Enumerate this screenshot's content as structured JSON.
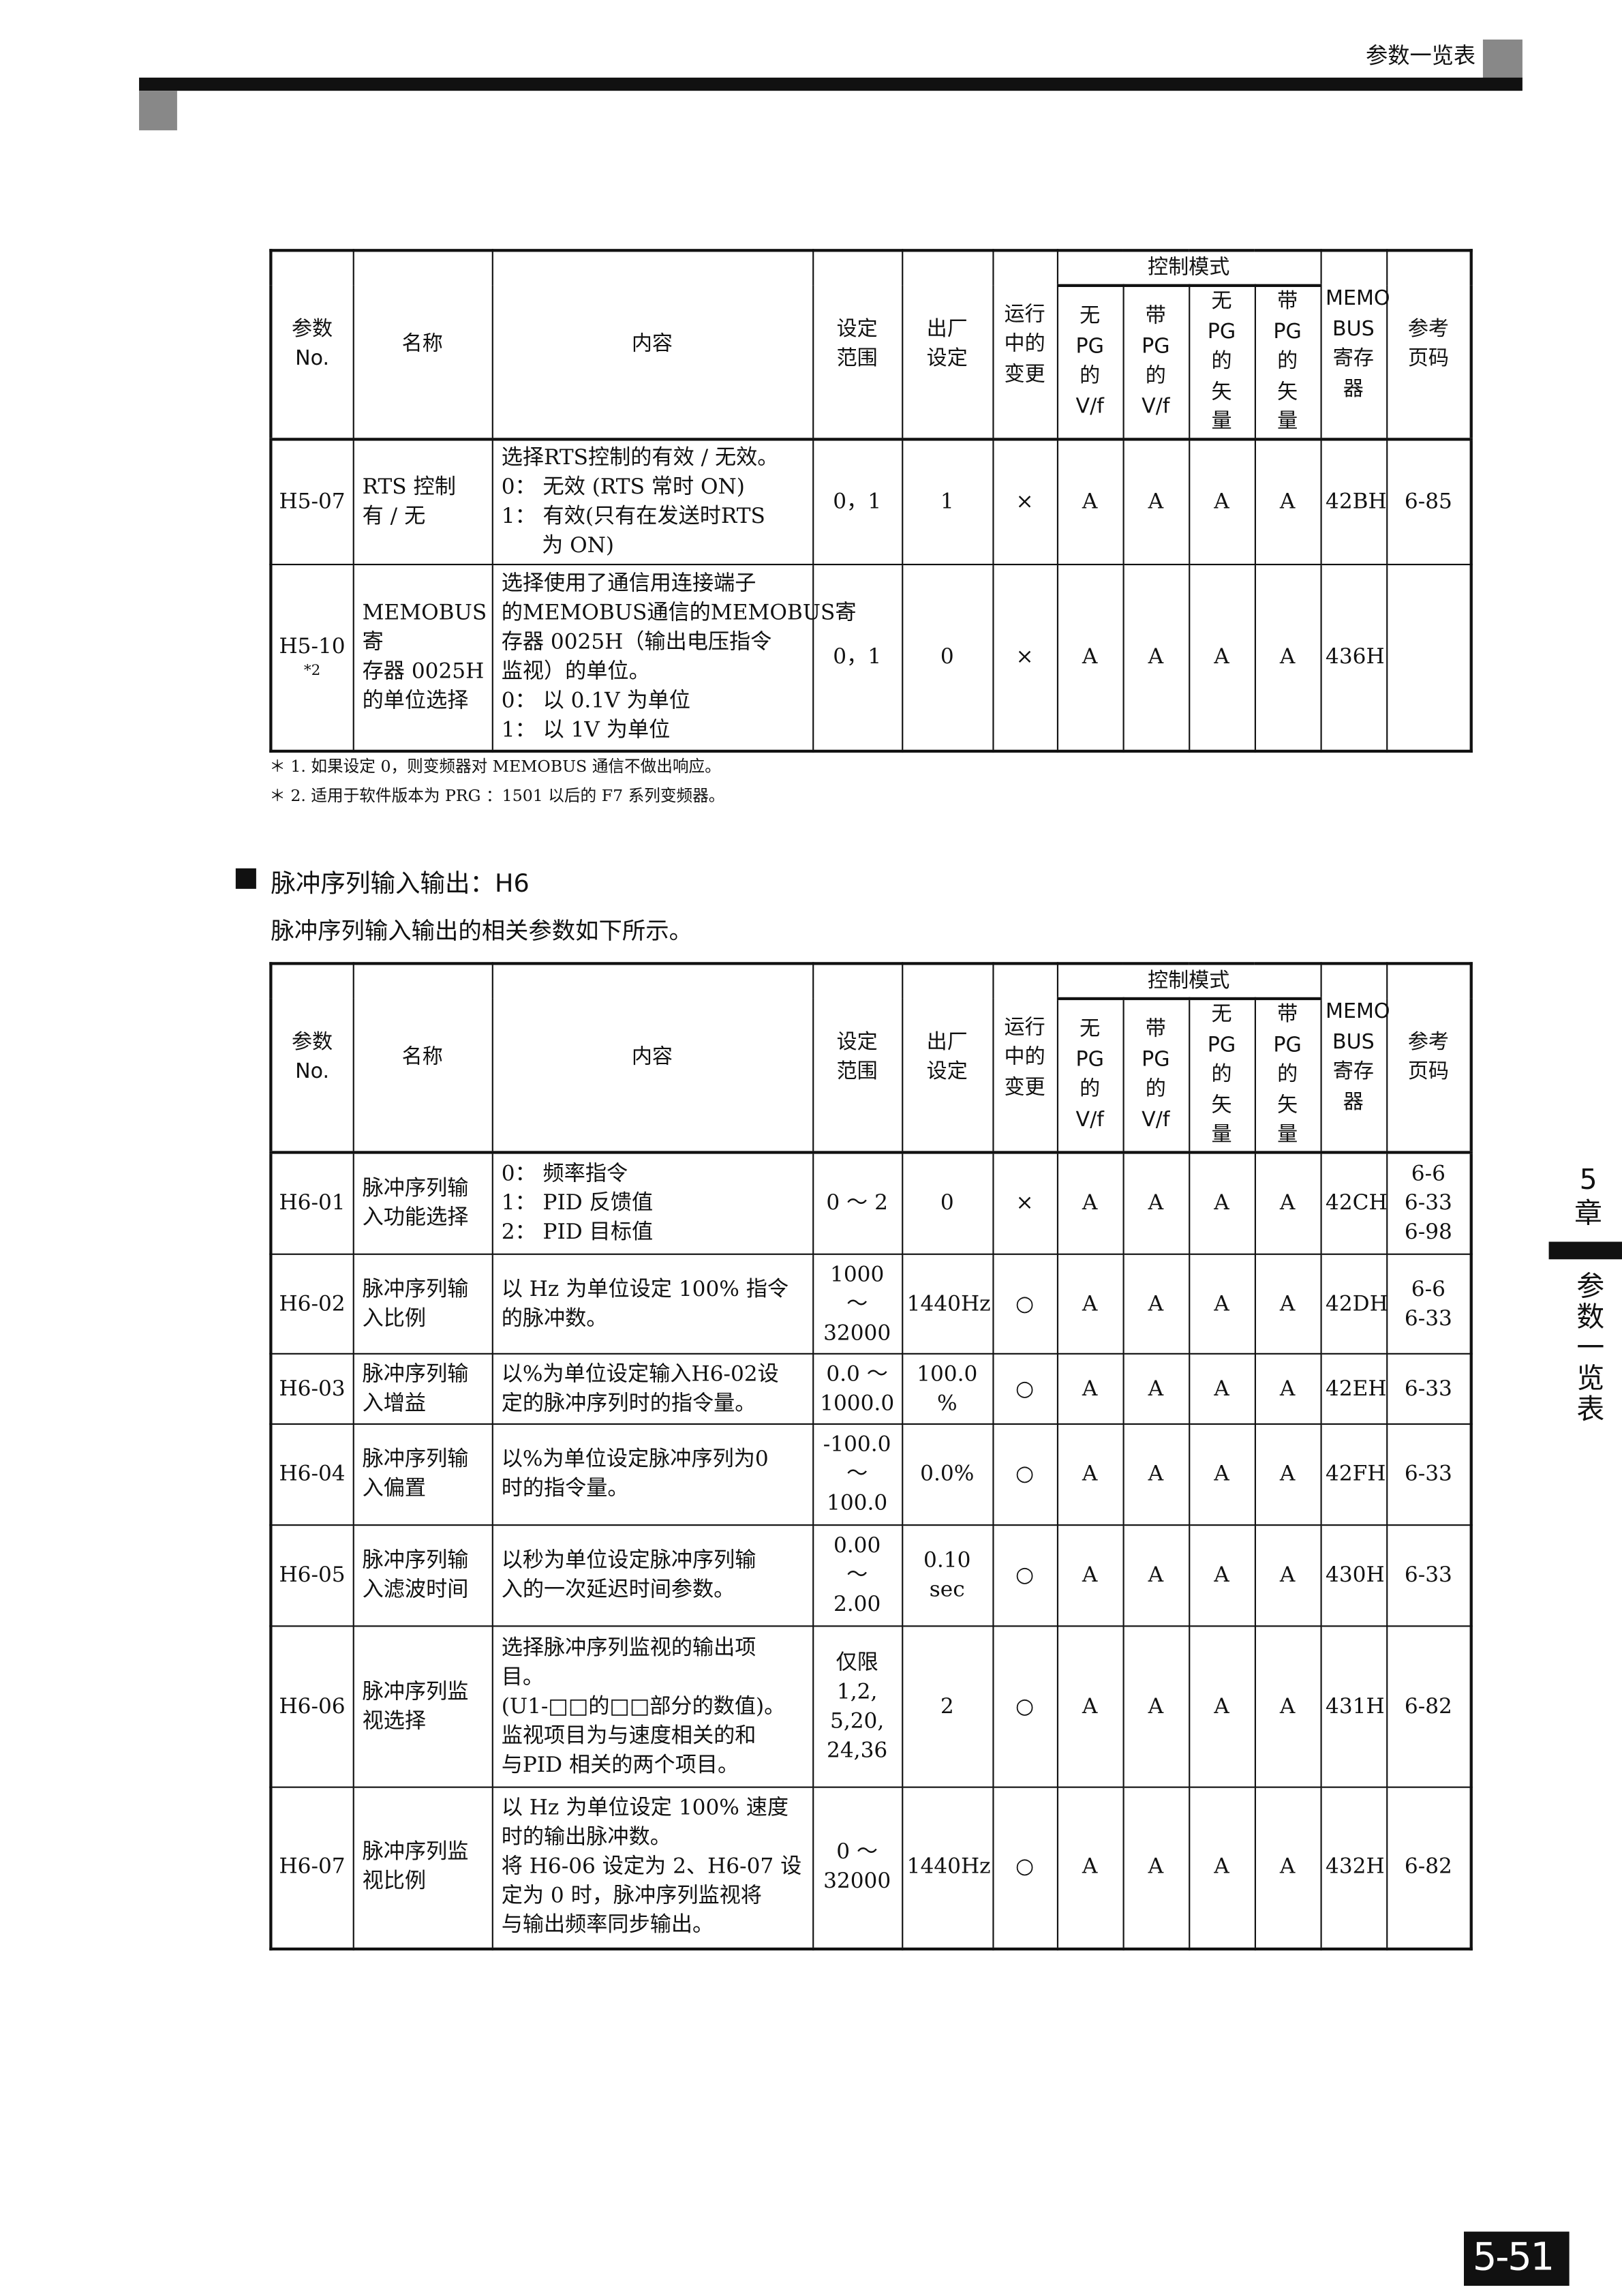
{
  "header": {
    "title": "参数一览表"
  },
  "side_tab": {
    "chapter_number": "5",
    "chapter_label": "章",
    "section": "参数一览表"
  },
  "page_number": "5-51",
  "tables": [
    {
      "head": {
        "param": [
          "参数",
          "No."
        ],
        "name": [
          "名称"
        ],
        "content": [
          "内容"
        ],
        "range": [
          "设定",
          "范围"
        ],
        "default": [
          "出厂",
          "设定"
        ],
        "change": [
          "运行",
          "中的",
          "变更"
        ],
        "mode_group": "控制模式",
        "modes": [
          [
            "无",
            "PG",
            "的",
            "V/f"
          ],
          [
            "带",
            "PG",
            "的",
            "V/f"
          ],
          [
            "无",
            "PG",
            "的",
            "矢",
            "量"
          ],
          [
            "带",
            "PG",
            "的",
            "矢",
            "量"
          ]
        ],
        "register": [
          "MEMO",
          "BUS",
          "寄存",
          "器"
        ],
        "page": [
          "参考",
          "页码"
        ]
      },
      "rows": [
        {
          "no": [
            "H5-07"
          ],
          "name": [
            "RTS 控制",
            "有 / 无"
          ],
          "content": [
            "选择RTS控制的有效 / 无效。",
            "0： 无效 (RTS 常时 ON)",
            "1： 有效(只有在发送时RTS",
            "      为 ON)"
          ],
          "range": [
            "0，1"
          ],
          "default": [
            "1"
          ],
          "change": [
            "×"
          ],
          "modes": [
            "A",
            "A",
            "A",
            "A"
          ],
          "register": [
            "42BH"
          ],
          "page": [
            "6-85"
          ]
        },
        {
          "no": [
            "H5-10"
          ],
          "note": "*2",
          "name": [
            "MEMOBUS 寄",
            "存器 0025H",
            "的单位选择"
          ],
          "content": [
            "选择使用了通信用连接端子",
            "的MEMOBUS通信的MEMOBUS寄",
            "存器 0025H（输出电压指令",
            "监视）的单位。",
            "0： 以 0.1V 为单位",
            "1： 以 1V 为单位"
          ],
          "range": [
            "0，1"
          ],
          "default": [
            "0"
          ],
          "change": [
            "×"
          ],
          "modes": [
            "A",
            "A",
            "A",
            "A"
          ],
          "register": [
            "436H"
          ],
          "page": null
        }
      ]
    },
    {
      "head": {
        "param": [
          "参数",
          "No."
        ],
        "name": [
          "名称"
        ],
        "content": [
          "内容"
        ],
        "range": [
          "设定",
          "范围"
        ],
        "default": [
          "出厂",
          "设定"
        ],
        "change": [
          "运行",
          "中的",
          "变更"
        ],
        "mode_group": "控制模式",
        "modes": [
          [
            "无",
            "PG",
            "的",
            "V/f"
          ],
          [
            "带",
            "PG",
            "的",
            "V/f"
          ],
          [
            "无",
            "PG",
            "的",
            "矢",
            "量"
          ],
          [
            "带",
            "PG",
            "的",
            "矢",
            "量"
          ]
        ],
        "register": [
          "MEMO",
          "BUS",
          "寄存",
          "器"
        ],
        "page": [
          "参考",
          "页码"
        ]
      },
      "rows": [
        {
          "no": [
            "H6-01"
          ],
          "name": [
            "脉冲序列输",
            "入功能选择"
          ],
          "content": [
            "0： 频率指令",
            "1： PID 反馈值",
            "2： PID 目标值"
          ],
          "range": [
            "0 ～ 2"
          ],
          "default": [
            "0"
          ],
          "change": [
            "×"
          ],
          "modes": [
            "A",
            "A",
            "A",
            "A"
          ],
          "register": [
            "42CH"
          ],
          "page": [
            "6-6",
            "6-33",
            "6-98"
          ]
        },
        {
          "no": [
            "H6-02"
          ],
          "name": [
            "脉冲序列输",
            "入比例"
          ],
          "content": [
            "以 Hz 为单位设定 100% 指令",
            "的脉冲数。"
          ],
          "range": [
            "1000",
            "～",
            "32000"
          ],
          "default": [
            "1440Hz"
          ],
          "change": [
            "○"
          ],
          "modes": [
            "A",
            "A",
            "A",
            "A"
          ],
          "register": [
            "42DH"
          ],
          "page": [
            "6-6",
            "6-33"
          ]
        },
        {
          "no": [
            "H6-03"
          ],
          "name": [
            "脉冲序列输",
            "入增益"
          ],
          "content": [
            "以%为单位设定输入H6-02设",
            "定的脉冲序列时的指令量。"
          ],
          "range": [
            "0.0 ～",
            "1000.0"
          ],
          "default": [
            "100.0",
            "%"
          ],
          "change": [
            "○"
          ],
          "modes": [
            "A",
            "A",
            "A",
            "A"
          ],
          "register": [
            "42EH"
          ],
          "page": [
            "6-33"
          ]
        },
        {
          "no": [
            "H6-04"
          ],
          "name": [
            "脉冲序列输",
            "入偏置"
          ],
          "content": [
            "以%为单位设定脉冲序列为0",
            "时的指令量。"
          ],
          "range": [
            "-100.0",
            "～",
            "100.0"
          ],
          "default": [
            "0.0%"
          ],
          "change": [
            "○"
          ],
          "modes": [
            "A",
            "A",
            "A",
            "A"
          ],
          "register": [
            "42FH"
          ],
          "page": [
            "6-33"
          ]
        },
        {
          "no": [
            "H6-05"
          ],
          "name": [
            "脉冲序列输",
            "入滤波时间"
          ],
          "content": [
            "以秒为单位设定脉冲序列输",
            "入的一次延迟时间参数。"
          ],
          "range": [
            "0.00",
            "～",
            "2.00"
          ],
          "default": [
            "0.10",
            "sec"
          ],
          "change": [
            "○"
          ],
          "modes": [
            "A",
            "A",
            "A",
            "A"
          ],
          "register": [
            "430H"
          ],
          "page": [
            "6-33"
          ]
        },
        {
          "no": [
            "H6-06"
          ],
          "name": [
            "脉冲序列监",
            "视选择"
          ],
          "content": [
            "选择脉冲序列监视的输出项",
            "目。",
            "(U1-□□的□□部分的数值)。",
            "监视项目为与速度相关的和",
            "与PID 相关的两个项目。"
          ],
          "range": [
            "仅限",
            "1,2,",
            "5,20,",
            "24,36"
          ],
          "default": [
            "2"
          ],
          "change": [
            "○"
          ],
          "modes": [
            "A",
            "A",
            "A",
            "A"
          ],
          "register": [
            "431H"
          ],
          "page": [
            "6-82"
          ]
        },
        {
          "no": [
            "H6-07"
          ],
          "name": [
            "脉冲序列监",
            "视比例"
          ],
          "content": [
            "以 Hz 为单位设定 100% 速度",
            "时的输出脉冲数。",
            "将 H6-06 设定为 2、H6-07 设",
            "定为 0 时，脉冲序列监视将",
            "与输出频率同步输出。"
          ],
          "range": [
            "0 ～",
            "32000"
          ],
          "default": [
            "1440Hz"
          ],
          "change": [
            "○"
          ],
          "modes": [
            "A",
            "A",
            "A",
            "A"
          ],
          "register": [
            "432H"
          ],
          "page": [
            "6-82"
          ]
        }
      ]
    }
  ],
  "footnotes": [
    "＊ 1. 如果设定 0，则变频器对 MEMOBUS 通信不做出响应。",
    "＊ 2. 适用于软件版本为 PRG ：1501 以后的 F7 系列变频器。"
  ],
  "section": {
    "heading": "脉冲序列输入输出：H6",
    "intro": "脉冲序列输入输出的相关参数如下所示。"
  }
}
